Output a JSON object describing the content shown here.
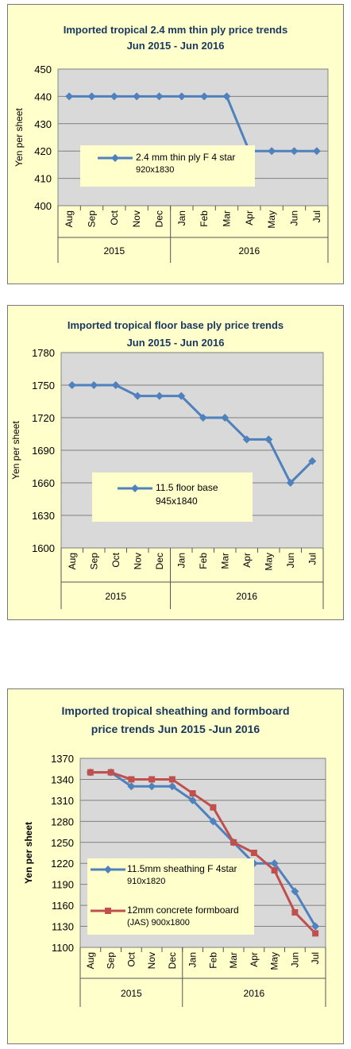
{
  "chart_data": [
    {
      "type": "line",
      "title": "Imported tropical 2.4 mm thin ply price trends",
      "subtitle": "Jun 2015 - Jun 2016",
      "ylabel": "Yen per sheet",
      "ylim": [
        400,
        450
      ],
      "yticks": [
        "400",
        "410",
        "420",
        "430",
        "440",
        "450"
      ],
      "categories": [
        "Aug",
        "Sep",
        "Oct",
        "Nov",
        "Dec",
        "Jan",
        "Feb",
        "Mar",
        "Apr",
        "May",
        "Jun",
        "Jul"
      ],
      "year_groups": [
        {
          "label": "2015",
          "count": 5
        },
        {
          "label": "2016",
          "count": 7
        }
      ],
      "grid": true,
      "legend_position": "center-left",
      "series": [
        {
          "name": "2.4 mm thin ply F 4 star",
          "name_line2": "920x1830",
          "color": "#4f81bd",
          "marker": "diamond",
          "values": [
            440,
            440,
            440,
            440,
            440,
            440,
            440,
            440,
            420,
            420,
            420,
            420
          ]
        }
      ]
    },
    {
      "type": "line",
      "title": "Imported tropical floor base ply price trends",
      "subtitle": "Jun 2015 - Jun 2016",
      "ylabel": "Yen per sheet",
      "ylim": [
        1600,
        1780
      ],
      "yticks": [
        "1600",
        "1630",
        "1660",
        "1690",
        "1720",
        "1750",
        "1780"
      ],
      "categories": [
        "Aug",
        "Sep",
        "Oct",
        "Nov",
        "Dec",
        "Jan",
        "Feb",
        "Mar",
        "Apr",
        "May",
        "Jun",
        "Jul"
      ],
      "year_groups": [
        {
          "label": "2015",
          "count": 5
        },
        {
          "label": "2016",
          "count": 7
        }
      ],
      "grid": true,
      "legend_position": "center-left",
      "series": [
        {
          "name": "11.5 floor base",
          "name_line2": "945x1840",
          "color": "#4f81bd",
          "marker": "diamond",
          "values": [
            1750,
            1750,
            1750,
            1740,
            1740,
            1740,
            1720,
            1720,
            1700,
            1700,
            1660,
            1680
          ]
        }
      ]
    },
    {
      "type": "line",
      "title": "Imported tropical sheathing and formboard",
      "subtitle": "price trends Jun 2015 -Jun 2016",
      "ylabel": "Yen per sheet",
      "ylim": [
        1100,
        1370
      ],
      "yticks": [
        "1100",
        "1130",
        "1160",
        "1190",
        "1220",
        "1250",
        "1280",
        "1310",
        "1340",
        "1370"
      ],
      "categories": [
        "Aug",
        "Sep",
        "Oct",
        "Nov",
        "Dec",
        "Jan",
        "Feb",
        "Mar",
        "Apr",
        "May",
        "Jun",
        "Jul"
      ],
      "year_groups": [
        {
          "label": "2015",
          "count": 5
        },
        {
          "label": "2016",
          "count": 7
        }
      ],
      "grid": true,
      "legend_position": "lower-left",
      "series": [
        {
          "name": "11.5mm sheathing F 4star",
          "name_line2": "910x1820",
          "color": "#4f81bd",
          "marker": "diamond",
          "values": [
            1350,
            1350,
            1330,
            1330,
            1330,
            1310,
            1280,
            1250,
            1220,
            1220,
            1180,
            1130
          ]
        },
        {
          "name": "12mm concrete formboard",
          "name_line2": "(JAS) 900x1800",
          "color": "#c0504d",
          "marker": "square",
          "values": [
            1350,
            1350,
            1340,
            1340,
            1340,
            1320,
            1300,
            1250,
            1235,
            1210,
            1150,
            1120
          ]
        }
      ]
    }
  ]
}
